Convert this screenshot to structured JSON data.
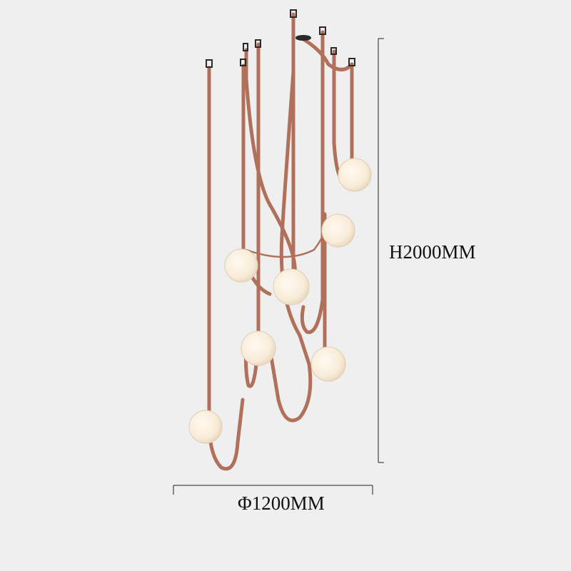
{
  "dimensions": {
    "height_label": "H2000MM",
    "diameter_label": "Φ1200MM"
  },
  "colors": {
    "background": "#efefef",
    "strap": "#b0705a",
    "globe": "#fbf3e6",
    "mount": "#2a2a2a"
  }
}
